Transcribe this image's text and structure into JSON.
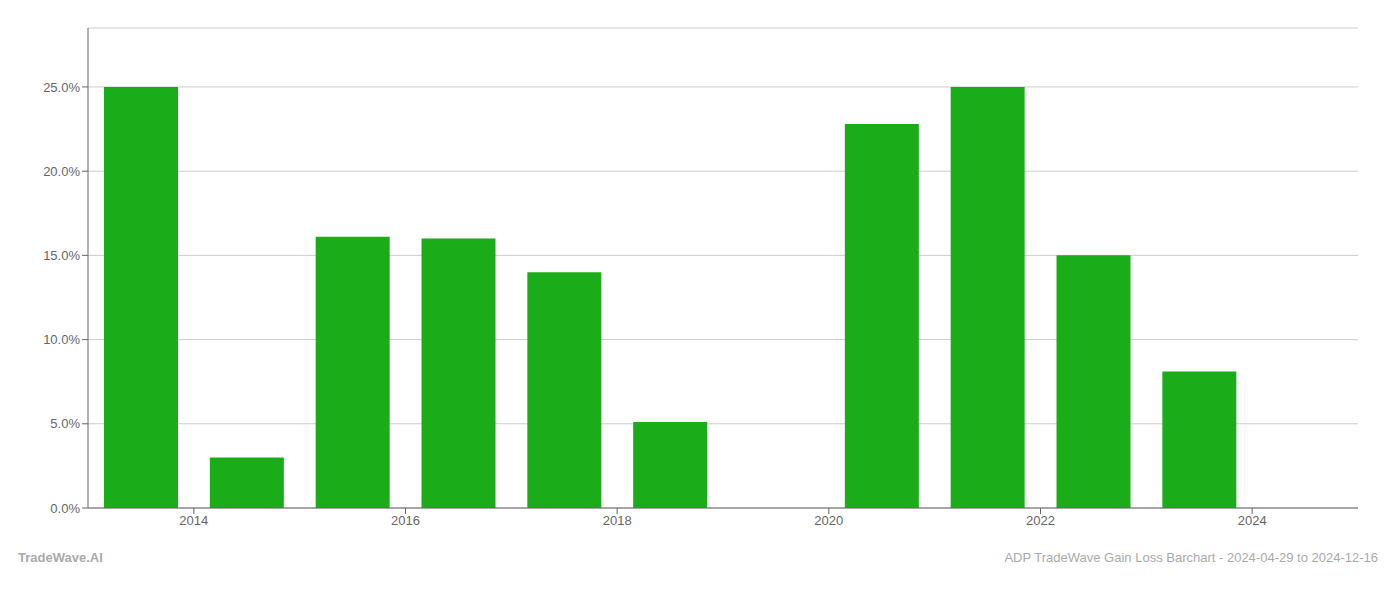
{
  "chart_data": {
    "type": "bar",
    "x": [
      2013.5,
      2014.5,
      2015.5,
      2016.5,
      2017.5,
      2018.5,
      2019.5,
      2020.5,
      2021.5,
      2022.5,
      2023.5
    ],
    "values": [
      0.25,
      0.03,
      0.161,
      0.16,
      0.14,
      0.051,
      0.0,
      0.228,
      0.25,
      0.15,
      0.081
    ],
    "color": "#1AAD19",
    "xlim": [
      2013.0,
      2025.0
    ],
    "ylim": [
      0,
      0.285
    ],
    "xticks": [
      2014,
      2016,
      2018,
      2020,
      2022,
      2024
    ],
    "yticks": [
      {
        "value": 0.0,
        "label": "0.0%"
      },
      {
        "value": 0.05,
        "label": "5.0%"
      },
      {
        "value": 0.1,
        "label": "10.0%"
      },
      {
        "value": 0.15,
        "label": "15.0%"
      },
      {
        "value": 0.2,
        "label": "20.0%"
      },
      {
        "value": 0.25,
        "label": "25.0%"
      }
    ],
    "grid": true,
    "annotations": [
      "TradeWave.AI",
      "ADP TradeWave Gain Loss Barchart - 2024-04-29 to 2024-12-16"
    ]
  }
}
